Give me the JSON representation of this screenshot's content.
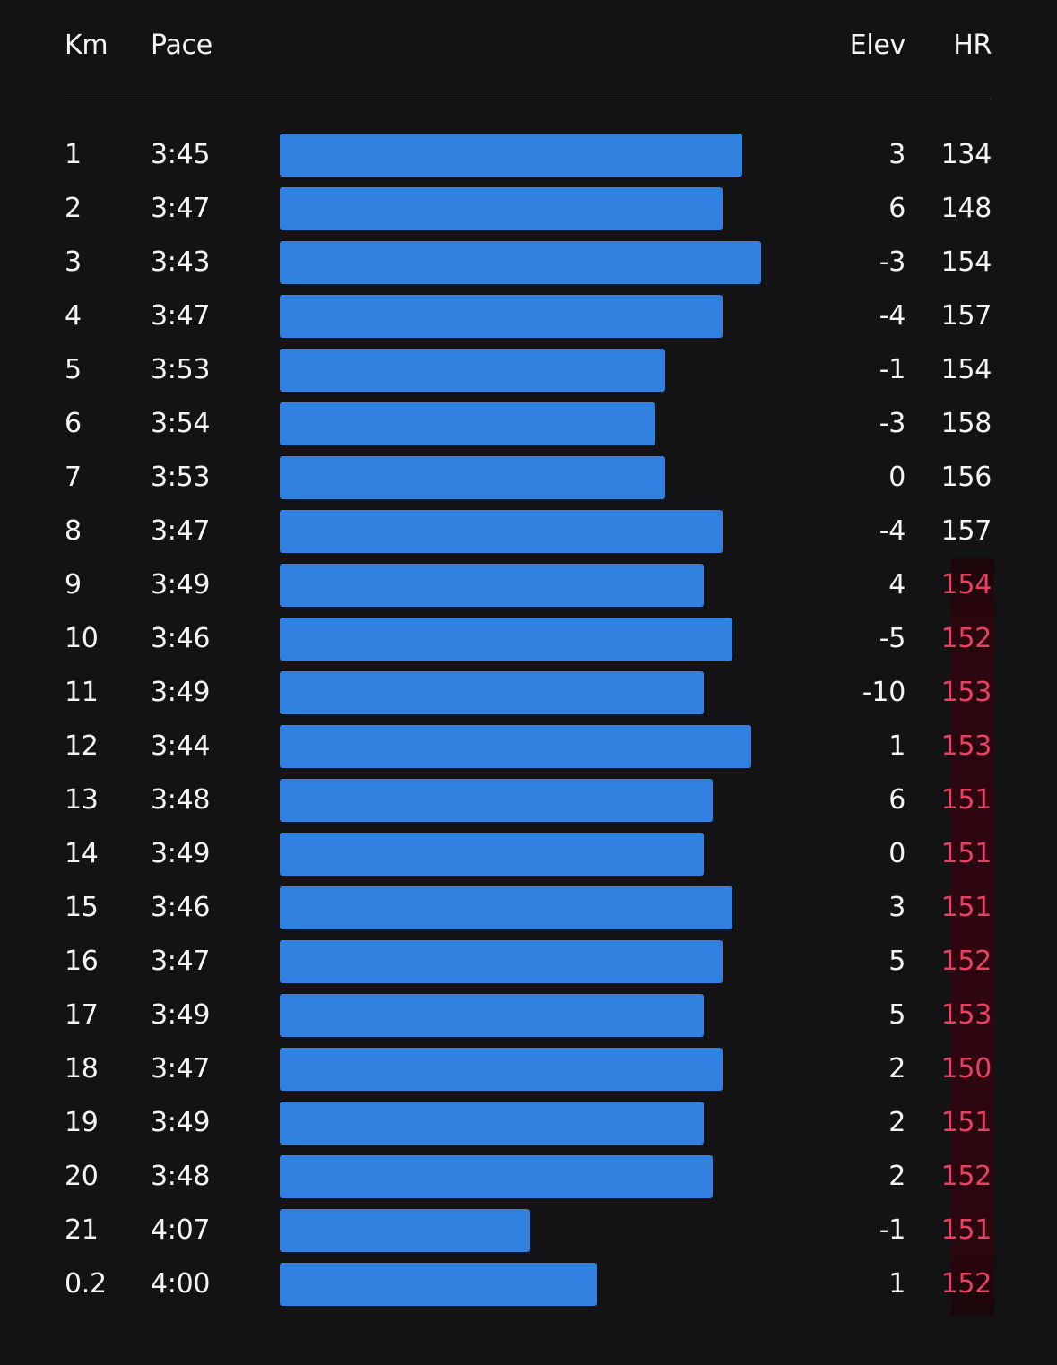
{
  "headers": {
    "km": "Km",
    "pace": "Pace",
    "elev": "Elev",
    "hr": "HR"
  },
  "colors": {
    "background": "#131315",
    "bar": "#3181e0",
    "hr_high": "#e64062",
    "hr_band": "#2f0610",
    "text": "#f4f4f4"
  },
  "pace_scale_seconds": [
    180,
    223
  ],
  "splits": [
    {
      "km": "1",
      "pace": "3:45",
      "elev": "3",
      "hr": "134",
      "hr_high": false
    },
    {
      "km": "2",
      "pace": "3:47",
      "elev": "6",
      "hr": "148",
      "hr_high": false
    },
    {
      "km": "3",
      "pace": "3:43",
      "elev": "-3",
      "hr": "154",
      "hr_high": false
    },
    {
      "km": "4",
      "pace": "3:47",
      "elev": "-4",
      "hr": "157",
      "hr_high": false
    },
    {
      "km": "5",
      "pace": "3:53",
      "elev": "-1",
      "hr": "154",
      "hr_high": false
    },
    {
      "km": "6",
      "pace": "3:54",
      "elev": "-3",
      "hr": "158",
      "hr_high": false
    },
    {
      "km": "7",
      "pace": "3:53",
      "elev": "0",
      "hr": "156",
      "hr_high": false
    },
    {
      "km": "8",
      "pace": "3:47",
      "elev": "-4",
      "hr": "157",
      "hr_high": false
    },
    {
      "km": "9",
      "pace": "3:49",
      "elev": "4",
      "hr": "154",
      "hr_high": true
    },
    {
      "km": "10",
      "pace": "3:46",
      "elev": "-5",
      "hr": "152",
      "hr_high": true
    },
    {
      "km": "11",
      "pace": "3:49",
      "elev": "-10",
      "hr": "153",
      "hr_high": true
    },
    {
      "km": "12",
      "pace": "3:44",
      "elev": "1",
      "hr": "153",
      "hr_high": true
    },
    {
      "km": "13",
      "pace": "3:48",
      "elev": "6",
      "hr": "151",
      "hr_high": true
    },
    {
      "km": "14",
      "pace": "3:49",
      "elev": "0",
      "hr": "151",
      "hr_high": true
    },
    {
      "km": "15",
      "pace": "3:46",
      "elev": "3",
      "hr": "151",
      "hr_high": true
    },
    {
      "km": "16",
      "pace": "3:47",
      "elev": "5",
      "hr": "152",
      "hr_high": true
    },
    {
      "km": "17",
      "pace": "3:49",
      "elev": "5",
      "hr": "153",
      "hr_high": true
    },
    {
      "km": "18",
      "pace": "3:47",
      "elev": "2",
      "hr": "150",
      "hr_high": true
    },
    {
      "km": "19",
      "pace": "3:49",
      "elev": "2",
      "hr": "151",
      "hr_high": true
    },
    {
      "km": "20",
      "pace": "3:48",
      "elev": "2",
      "hr": "152",
      "hr_high": true
    },
    {
      "km": "21",
      "pace": "4:07",
      "elev": "-1",
      "hr": "151",
      "hr_high": true
    },
    {
      "km": "0.2",
      "pace": "4:00",
      "elev": "1",
      "hr": "152",
      "hr_high": true
    }
  ]
}
